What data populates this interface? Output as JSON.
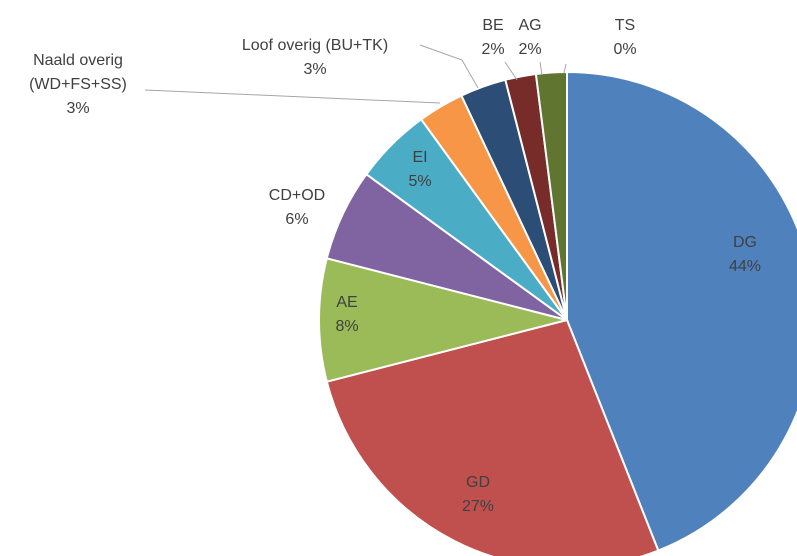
{
  "chart_data": {
    "type": "pie",
    "categories": [
      "DG",
      "GD",
      "AE",
      "CD+OD",
      "EI",
      "Naald overig (WD+FS+SS)",
      "Loof overig (BU+TK)",
      "BE",
      "AG",
      "TS"
    ],
    "values": [
      44,
      27,
      8,
      6,
      5,
      3,
      3,
      2,
      2,
      0
    ],
    "value_labels": [
      "44%",
      "27%",
      "8%",
      "6%",
      "5%",
      "3%",
      "3%",
      "2%",
      "2%",
      "0%"
    ],
    "colors": [
      "#4f81bd",
      "#c0504d",
      "#9bbb59",
      "#8064a2",
      "#4bacc6",
      "#f79646",
      "#2c4d75",
      "#772c2a",
      "#5f7530",
      "#4d3b62"
    ]
  }
}
